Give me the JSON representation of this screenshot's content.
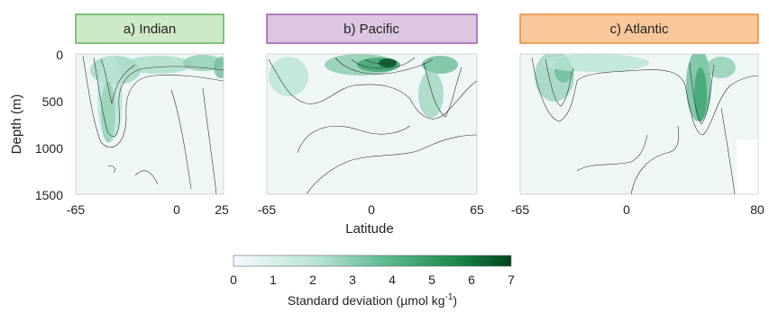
{
  "chart_data": {
    "type": "heatmap",
    "ylabel": "Depth (m)",
    "xlabel": "Latitude",
    "y_ticks": [
      "0",
      "500",
      "1000",
      "1500"
    ],
    "ylim": [
      1500,
      0
    ],
    "panels": [
      {
        "title": "a) Indian",
        "title_color": "#cde9c6",
        "title_border": "#5fb05a",
        "x_ticks": [
          "-65",
          "0",
          "25"
        ],
        "xlim": [
          -65,
          25
        ],
        "hotspots": [
          {
            "lat": -40,
            "depth": 150,
            "value": 3.2
          },
          {
            "lat": -20,
            "depth": 120,
            "value": 2.6
          },
          {
            "lat": 10,
            "depth": 100,
            "value": 2.4
          },
          {
            "lat": -45,
            "depth": 700,
            "value": 2.0
          }
        ]
      },
      {
        "title": "b) Pacific",
        "title_color": "#dcc6e2",
        "title_border": "#9c5cab",
        "x_ticks": [
          "-65",
          "0",
          "65"
        ],
        "xlim": [
          -65,
          65
        ],
        "hotspots": [
          {
            "lat": 5,
            "depth": 150,
            "value": 6.5
          },
          {
            "lat": -15,
            "depth": 150,
            "value": 4.0
          },
          {
            "lat": 40,
            "depth": 120,
            "value": 3.5
          },
          {
            "lat": 40,
            "depth": 400,
            "value": 2.5
          },
          {
            "lat": -45,
            "depth": 250,
            "value": 2.0
          }
        ]
      },
      {
        "title": "c) Atlantic",
        "title_color": "#f9c89a",
        "title_border": "#ee8a33",
        "x_ticks": [
          "-65",
          "0",
          "80"
        ],
        "xlim": [
          -65,
          80
        ],
        "hotspots": [
          {
            "lat": -40,
            "depth": 200,
            "value": 3.5
          },
          {
            "lat": 40,
            "depth": 300,
            "value": 4.5
          },
          {
            "lat": 40,
            "depth": 700,
            "value": 3.0
          },
          {
            "lat": 60,
            "depth": 150,
            "value": 2.5
          }
        ]
      }
    ],
    "colorbar": {
      "label": "Standard deviation (µmol kg",
      "label_sup": "-1",
      "label_close": ")",
      "ticks": [
        "0",
        "1",
        "2",
        "3",
        "4",
        "5",
        "6",
        "7"
      ],
      "range": [
        0,
        7
      ],
      "color_low": "#f4fafd",
      "color_high": "#00441b"
    }
  }
}
